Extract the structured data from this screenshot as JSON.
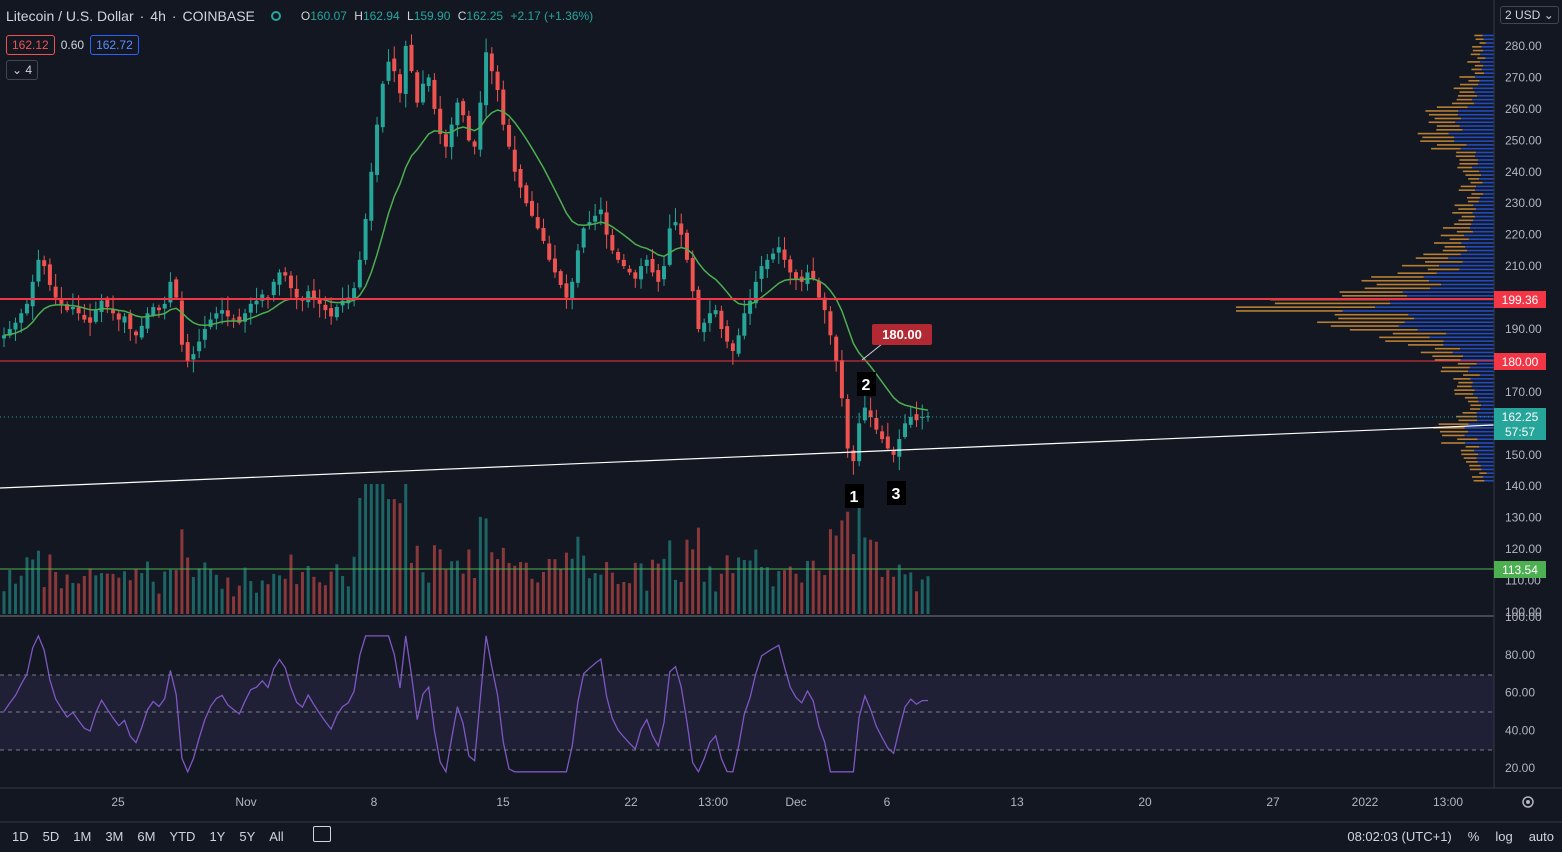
{
  "header": {
    "symbol": "Litecoin / U.S. Dollar",
    "interval": "4h",
    "exchange": "COINBASE",
    "open": "160.07",
    "high": "162.94",
    "low": "159.90",
    "close": "162.25",
    "change": "+2.17 (+1.36%)",
    "bid": "162.12",
    "spread": "0.60",
    "ask": "162.72",
    "indicators_toggle": "4",
    "currency": "2 USD"
  },
  "colors": {
    "up": "#26a69a",
    "down": "#ef5350",
    "background": "#131722",
    "rsi": "#7e57c2",
    "ma": "#4caf50"
  },
  "chart_data": {
    "type": "candlestick",
    "price_axis": {
      "ticks": [
        "280.00",
        "270.00",
        "260.00",
        "250.00",
        "240.00",
        "230.00",
        "220.00",
        "210.00",
        "200.00",
        "190.00",
        "180.00",
        "170.00",
        "160.00",
        "150.00",
        "140.00",
        "130.00",
        "120.00",
        "110.00",
        "100.00"
      ],
      "range": [
        100,
        285
      ]
    },
    "rsi_axis": {
      "ticks": [
        "100.00",
        "80.00",
        "60.00",
        "40.00",
        "20.00"
      ],
      "range": [
        10,
        100
      ],
      "bands": [
        30,
        50,
        70
      ]
    },
    "x_ticks": [
      "25",
      "Nov",
      "8",
      "15",
      "22",
      "13:00",
      "Dec",
      "6",
      "13",
      "20",
      "27",
      "2022",
      "13:00"
    ],
    "closes": [
      188,
      190,
      192,
      195,
      198,
      205,
      212,
      210,
      204,
      200,
      198,
      196,
      197,
      195,
      193,
      192,
      196,
      199,
      197,
      195,
      193,
      194,
      190,
      188,
      191,
      195,
      197,
      196,
      198,
      205,
      200,
      185,
      180,
      182,
      186,
      190,
      193,
      195,
      196,
      194,
      193,
      192,
      195,
      198,
      199,
      201,
      200,
      205,
      208,
      207,
      203,
      200,
      199,
      202,
      200,
      198,
      196,
      194,
      197,
      199,
      200,
      203,
      212,
      225,
      240,
      255,
      268,
      275,
      272,
      265,
      280,
      272,
      262,
      268,
      270,
      260,
      252,
      248,
      255,
      262,
      258,
      250,
      248,
      262,
      278,
      272,
      266,
      255,
      248,
      240,
      235,
      230,
      226,
      222,
      218,
      212,
      208,
      204,
      200,
      205,
      215,
      222,
      224,
      226,
      228,
      220,
      215,
      212,
      210,
      208,
      206,
      210,
      212,
      208,
      205,
      210,
      222,
      224,
      220,
      212,
      202,
      190,
      192,
      195,
      196,
      190,
      186,
      183,
      188,
      195,
      199,
      205,
      210,
      212,
      214,
      216,
      212,
      208,
      206,
      205,
      208,
      206,
      200,
      196,
      188,
      180,
      168,
      152,
      148,
      160,
      165,
      162,
      158,
      155,
      152,
      150,
      155,
      160,
      162,
      161,
      162,
      162.25
    ],
    "horizontal_levels": [
      "199.36",
      "180.00",
      "113.54"
    ],
    "current_price": "162.25",
    "countdown": "57:57",
    "annotations": [
      "1",
      "2",
      "3"
    ],
    "callout": "180.00",
    "volume_profile": true,
    "grid": false
  },
  "bottom_bar": {
    "ranges": [
      "1D",
      "5D",
      "1M",
      "3M",
      "6M",
      "YTD",
      "1Y",
      "5Y",
      "All"
    ],
    "clock": "08:02:03 (UTC+1)",
    "percent": "%",
    "log": "log",
    "auto": "auto"
  }
}
